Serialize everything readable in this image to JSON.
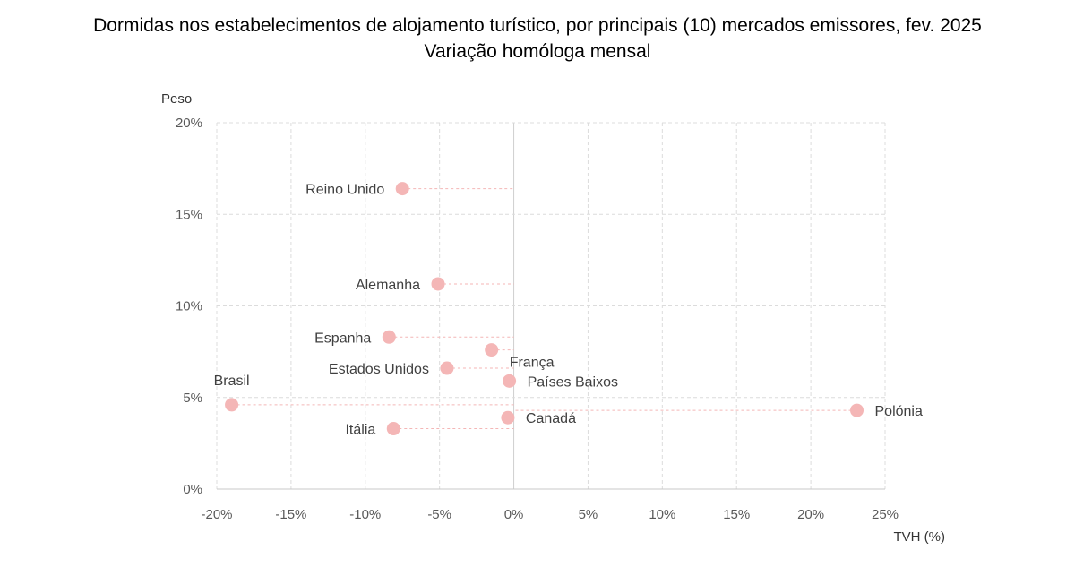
{
  "chart_data": {
    "type": "scatter",
    "title": "Dormidas nos estabelecimentos de alojamento turístico, por principais (10) mercados emissores, fev. 2025",
    "subtitle": "Variação homóloga mensal",
    "xlabel": "TVH (%)",
    "ylabel": "Peso",
    "xlim": [
      -20,
      25
    ],
    "ylim": [
      0,
      20
    ],
    "x_ticks": [
      "-20%",
      "-15%",
      "-10%",
      "-5%",
      "0%",
      "5%",
      "10%",
      "15%",
      "20%",
      "25%"
    ],
    "y_ticks": [
      "0%",
      "5%",
      "10%",
      "15%",
      "20%"
    ],
    "grid": true,
    "marker_color": "#f4b6b6",
    "connector_color": "#f4b6b6",
    "points": [
      {
        "label": "Reino Unido",
        "x": -7.5,
        "y": 16.4,
        "label_pos": "left"
      },
      {
        "label": "Alemanha",
        "x": -5.1,
        "y": 11.2,
        "label_pos": "left"
      },
      {
        "label": "Espanha",
        "x": -8.4,
        "y": 8.3,
        "label_pos": "left"
      },
      {
        "label": "França",
        "x": -1.5,
        "y": 7.6,
        "label_pos": "right-below"
      },
      {
        "label": "Estados Unidos",
        "x": -4.5,
        "y": 6.6,
        "label_pos": "left"
      },
      {
        "label": "Países Baixos",
        "x": -0.3,
        "y": 5.9,
        "label_pos": "right"
      },
      {
        "label": "Brasil",
        "x": -19.0,
        "y": 4.6,
        "label_pos": "above"
      },
      {
        "label": "Polónia",
        "x": 23.1,
        "y": 4.3,
        "label_pos": "right"
      },
      {
        "label": "Canadá",
        "x": -0.4,
        "y": 3.9,
        "label_pos": "right"
      },
      {
        "label": "Itália",
        "x": -8.1,
        "y": 3.3,
        "label_pos": "left"
      }
    ]
  }
}
